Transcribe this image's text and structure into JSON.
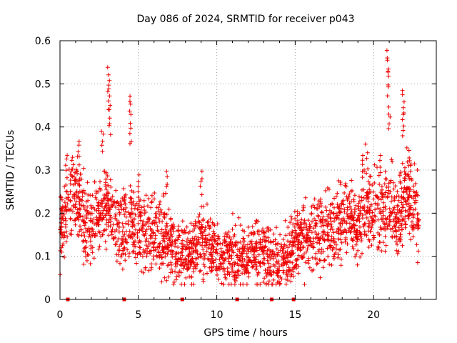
{
  "chart_data": {
    "type": "scatter",
    "title": "Day 086 of 2024, SRMTID for receiver p043",
    "xlabel": "GPS time / hours",
    "ylabel": "SRMTID / TECUs",
    "xlim": [
      0,
      24
    ],
    "ylim": [
      0,
      0.6
    ],
    "x_ticks": [
      0,
      5,
      10,
      15,
      20
    ],
    "x_tick_labels": [
      "0",
      "5",
      "10",
      "15",
      "20"
    ],
    "y_ticks": [
      0,
      0.1,
      0.2,
      0.3,
      0.4,
      0.5,
      0.6
    ],
    "y_tick_labels": [
      "0",
      "0.1",
      "0.2",
      "0.3",
      "0.4",
      "0.5",
      "0.6"
    ],
    "grid": true,
    "marker": "plus",
    "color": "#ee0000",
    "baseline_markers_hours": [
      0.5,
      4.1,
      7.8,
      11.3,
      13.5,
      14.9
    ],
    "envelope": [
      {
        "x": 0.0,
        "y": 0.17
      },
      {
        "x": 0.5,
        "y": 0.21
      },
      {
        "x": 1.0,
        "y": 0.25
      },
      {
        "x": 1.5,
        "y": 0.19
      },
      {
        "x": 2.0,
        "y": 0.17
      },
      {
        "x": 2.5,
        "y": 0.19
      },
      {
        "x": 3.0,
        "y": 0.21
      },
      {
        "x": 3.5,
        "y": 0.17
      },
      {
        "x": 4.0,
        "y": 0.15
      },
      {
        "x": 4.5,
        "y": 0.19
      },
      {
        "x": 5.0,
        "y": 0.16
      },
      {
        "x": 5.5,
        "y": 0.15
      },
      {
        "x": 6.0,
        "y": 0.16
      },
      {
        "x": 6.5,
        "y": 0.14
      },
      {
        "x": 7.0,
        "y": 0.12
      },
      {
        "x": 7.5,
        "y": 0.11
      },
      {
        "x": 8.0,
        "y": 0.1
      },
      {
        "x": 8.5,
        "y": 0.11
      },
      {
        "x": 9.0,
        "y": 0.14
      },
      {
        "x": 9.5,
        "y": 0.12
      },
      {
        "x": 10.0,
        "y": 0.11
      },
      {
        "x": 10.5,
        "y": 0.1
      },
      {
        "x": 11.0,
        "y": 0.1
      },
      {
        "x": 11.5,
        "y": 0.1
      },
      {
        "x": 12.0,
        "y": 0.1
      },
      {
        "x": 12.5,
        "y": 0.11
      },
      {
        "x": 13.0,
        "y": 0.1
      },
      {
        "x": 13.5,
        "y": 0.09
      },
      {
        "x": 14.0,
        "y": 0.09
      },
      {
        "x": 14.5,
        "y": 0.1
      },
      {
        "x": 15.0,
        "y": 0.12
      },
      {
        "x": 15.5,
        "y": 0.14
      },
      {
        "x": 16.0,
        "y": 0.15
      },
      {
        "x": 16.5,
        "y": 0.16
      },
      {
        "x": 17.0,
        "y": 0.17
      },
      {
        "x": 17.5,
        "y": 0.16
      },
      {
        "x": 18.0,
        "y": 0.19
      },
      {
        "x": 18.5,
        "y": 0.21
      },
      {
        "x": 19.0,
        "y": 0.16
      },
      {
        "x": 19.5,
        "y": 0.23
      },
      {
        "x": 20.0,
        "y": 0.2
      },
      {
        "x": 20.5,
        "y": 0.19
      },
      {
        "x": 21.0,
        "y": 0.22
      },
      {
        "x": 21.5,
        "y": 0.18
      },
      {
        "x": 22.0,
        "y": 0.24
      },
      {
        "x": 22.5,
        "y": 0.21
      },
      {
        "x": 22.9,
        "y": 0.19
      }
    ],
    "peaks": [
      {
        "x": 0.4,
        "y": 0.34
      },
      {
        "x": 1.2,
        "y": 0.37
      },
      {
        "x": 2.7,
        "y": 0.4
      },
      {
        "x": 3.1,
        "y": 0.54
      },
      {
        "x": 3.15,
        "y": 0.49
      },
      {
        "x": 3.2,
        "y": 0.44
      },
      {
        "x": 4.1,
        "y": 0.26
      },
      {
        "x": 4.5,
        "y": 0.48
      },
      {
        "x": 4.5,
        "y": 0.41
      },
      {
        "x": 5.0,
        "y": 0.29
      },
      {
        "x": 6.8,
        "y": 0.3
      },
      {
        "x": 9.0,
        "y": 0.3
      },
      {
        "x": 19.3,
        "y": 0.34
      },
      {
        "x": 20.4,
        "y": 0.34
      },
      {
        "x": 20.9,
        "y": 0.58
      },
      {
        "x": 20.95,
        "y": 0.53
      },
      {
        "x": 21.0,
        "y": 0.45
      },
      {
        "x": 21.9,
        "y": 0.49
      },
      {
        "x": 21.9,
        "y": 0.43
      },
      {
        "x": 22.3,
        "y": 0.35
      }
    ]
  }
}
